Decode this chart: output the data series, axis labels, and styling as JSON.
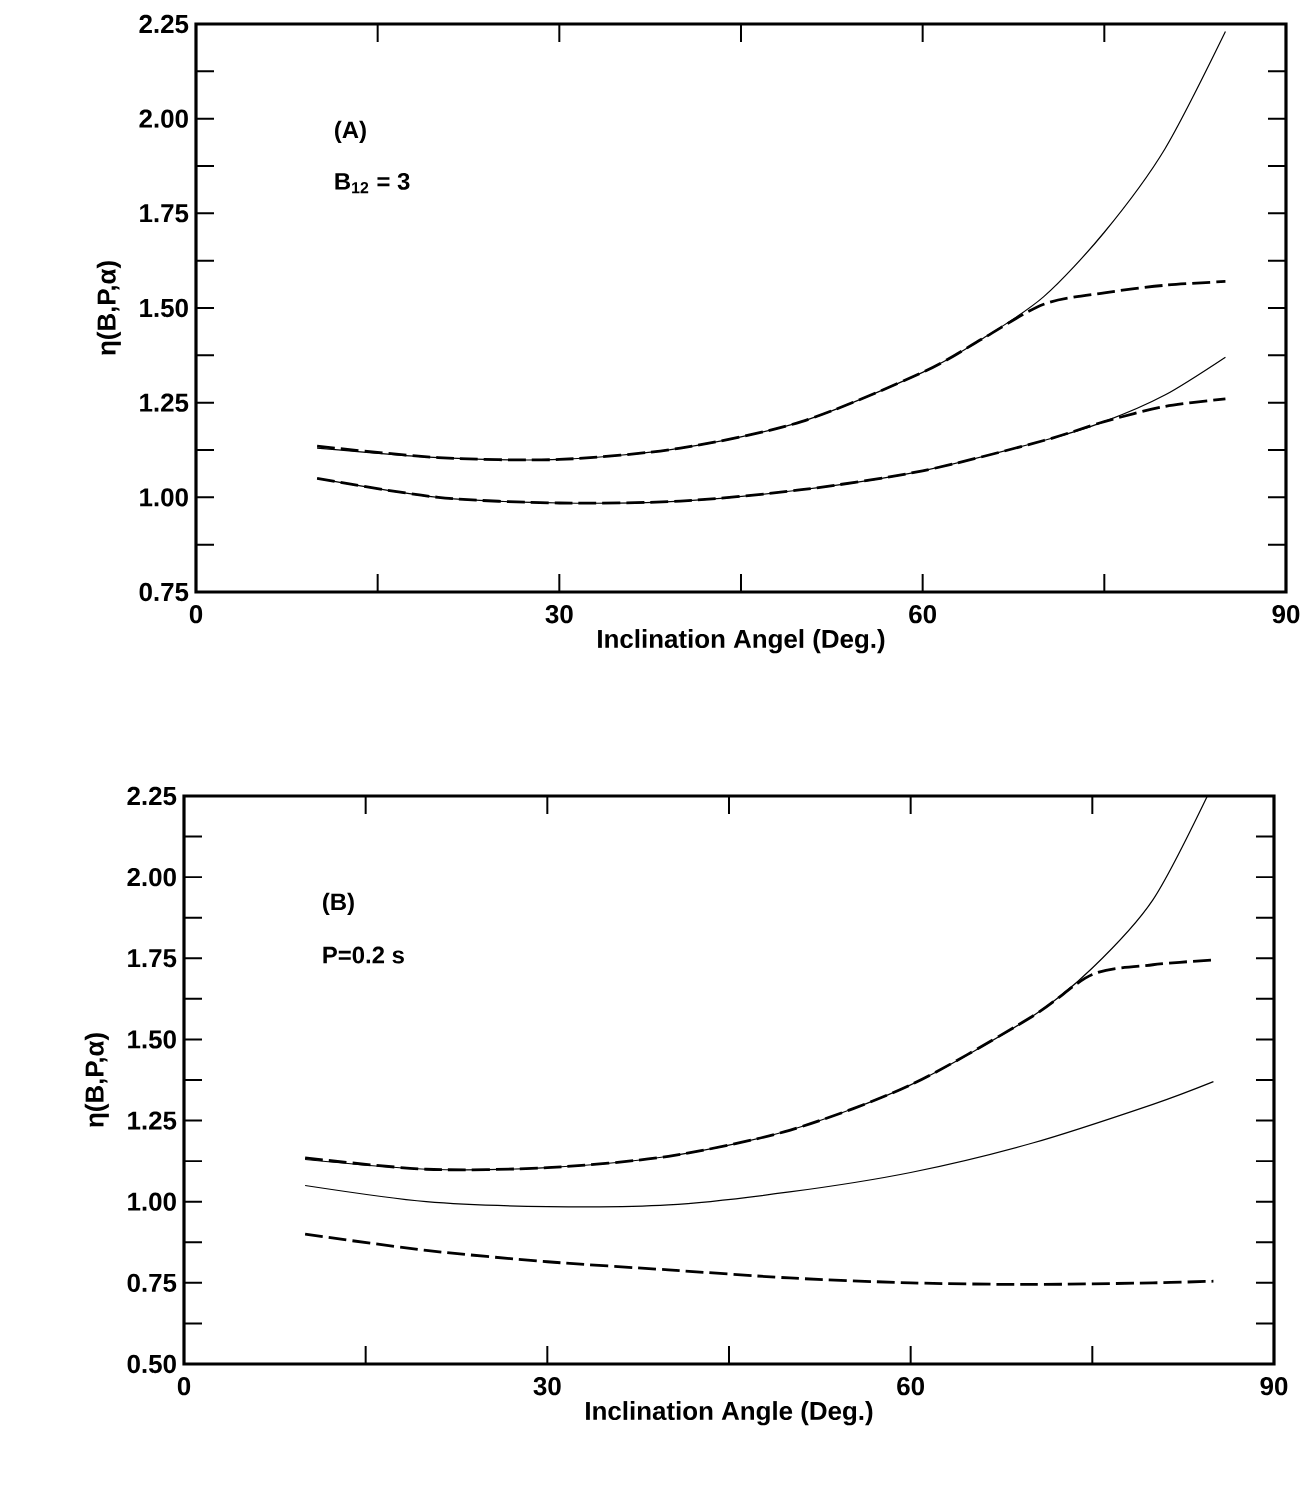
{
  "chart_data": [
    {
      "type": "line",
      "xlabel": "Inclination Angel (Deg.)",
      "ylabel": "η(B,P,α)",
      "annotations": [
        "(A)",
        "B$_{12}$ = 3"
      ],
      "xlim": [
        0,
        90
      ],
      "ylim": [
        0.75,
        2.25
      ],
      "xticks": [
        0,
        {
          "value": 15,
          "label": null
        },
        30,
        {
          "value": 45,
          "label": null
        },
        60,
        {
          "value": 75,
          "label": null
        },
        90
      ],
      "yticks": [
        {
          "value": 0.75,
          "label": "0.75"
        },
        {
          "value": 0.875,
          "label": null
        },
        {
          "value": 1,
          "label": "1.00"
        },
        {
          "value": 1.125,
          "label": null
        },
        {
          "value": 1.25,
          "label": "1.25"
        },
        {
          "value": 1.375,
          "label": null
        },
        {
          "value": 1.5,
          "label": "1.50"
        },
        {
          "value": 1.625,
          "label": null
        },
        {
          "value": 1.75,
          "label": "1.75"
        },
        {
          "value": 1.875,
          "label": null
        },
        {
          "value": 2,
          "label": "2.00"
        },
        {
          "value": 2.125,
          "label": null
        },
        {
          "value": 2.25,
          "label": "2.25"
        }
      ],
      "series": [
        {
          "color": "#000000",
          "line_style": "solid",
          "x": [
            10,
            20,
            30,
            40,
            50,
            60,
            65,
            70,
            75,
            80,
            85
          ],
          "values": [
            1.13,
            1.105,
            1.1,
            1.13,
            1.2,
            1.33,
            1.42,
            1.53,
            1.7,
            1.92,
            2.23
          ]
        },
        {
          "color": "#000000",
          "line_style": "dashed",
          "x": [
            10,
            20,
            30,
            40,
            50,
            60,
            65,
            70,
            75,
            80,
            85
          ],
          "values": [
            1.135,
            1.105,
            1.1,
            1.13,
            1.2,
            1.33,
            1.42,
            1.51,
            1.54,
            1.56,
            1.57
          ]
        },
        {
          "color": "#000000",
          "line_style": "solid",
          "x": [
            10,
            20,
            30,
            40,
            50,
            60,
            70,
            75,
            80,
            85
          ],
          "values": [
            1.05,
            1.0,
            0.985,
            0.99,
            1.02,
            1.07,
            1.15,
            1.2,
            1.27,
            1.37
          ]
        },
        {
          "color": "#000000",
          "line_style": "dashed",
          "x": [
            10,
            20,
            30,
            40,
            50,
            60,
            70,
            75,
            80,
            85
          ],
          "values": [
            1.05,
            1.0,
            0.985,
            0.99,
            1.02,
            1.07,
            1.15,
            1.2,
            1.24,
            1.26
          ]
        }
      ]
    },
    {
      "type": "line",
      "xlabel": "Inclination Angle (Deg.)",
      "ylabel": "η(B,P,α)",
      "annotations": [
        "(B)",
        "P=0.2 s"
      ],
      "xlim": [
        0,
        90
      ],
      "ylim": [
        0.5,
        2.25
      ],
      "xticks": [
        0,
        {
          "value": 15,
          "label": null
        },
        30,
        {
          "value": 45,
          "label": null
        },
        60,
        {
          "value": 75,
          "label": null
        },
        90
      ],
      "yticks": [
        {
          "value": 0.5,
          "label": "0.50"
        },
        {
          "value": 0.625,
          "label": null
        },
        {
          "value": 0.75,
          "label": "0.75"
        },
        {
          "value": 0.875,
          "label": null
        },
        {
          "value": 1,
          "label": "1.00"
        },
        {
          "value": 1.125,
          "label": null
        },
        {
          "value": 1.25,
          "label": "1.25"
        },
        {
          "value": 1.375,
          "label": null
        },
        {
          "value": 1.5,
          "label": "1.50"
        },
        {
          "value": 1.625,
          "label": null
        },
        {
          "value": 1.75,
          "label": "1.75"
        },
        {
          "value": 1.875,
          "label": null
        },
        {
          "value": 2,
          "label": "2.00"
        },
        {
          "value": 2.125,
          "label": null
        },
        {
          "value": 2.25,
          "label": "2.25"
        }
      ],
      "series": [
        {
          "color": "#000000",
          "line_style": "solid",
          "x": [
            10,
            20,
            30,
            40,
            50,
            60,
            70,
            75,
            80,
            84.5
          ],
          "values": [
            1.13,
            1.1,
            1.105,
            1.14,
            1.22,
            1.36,
            1.57,
            1.72,
            1.93,
            2.25
          ]
        },
        {
          "color": "#000000",
          "line_style": "dashed",
          "x": [
            10,
            20,
            30,
            40,
            50,
            60,
            70,
            75,
            80,
            85
          ],
          "values": [
            1.135,
            1.1,
            1.105,
            1.14,
            1.22,
            1.36,
            1.57,
            1.7,
            1.73,
            1.745
          ]
        },
        {
          "color": "#000000",
          "line_style": "solid",
          "x": [
            10,
            20,
            30,
            40,
            50,
            60,
            70,
            80,
            85
          ],
          "values": [
            1.05,
            1.0,
            0.985,
            0.99,
            1.03,
            1.09,
            1.18,
            1.3,
            1.37
          ]
        },
        {
          "color": "#000000",
          "line_style": "dashed",
          "x": [
            10,
            20,
            30,
            40,
            50,
            60,
            70,
            80,
            85
          ],
          "values": [
            0.9,
            0.85,
            0.815,
            0.79,
            0.765,
            0.75,
            0.745,
            0.75,
            0.755
          ]
        }
      ]
    }
  ]
}
